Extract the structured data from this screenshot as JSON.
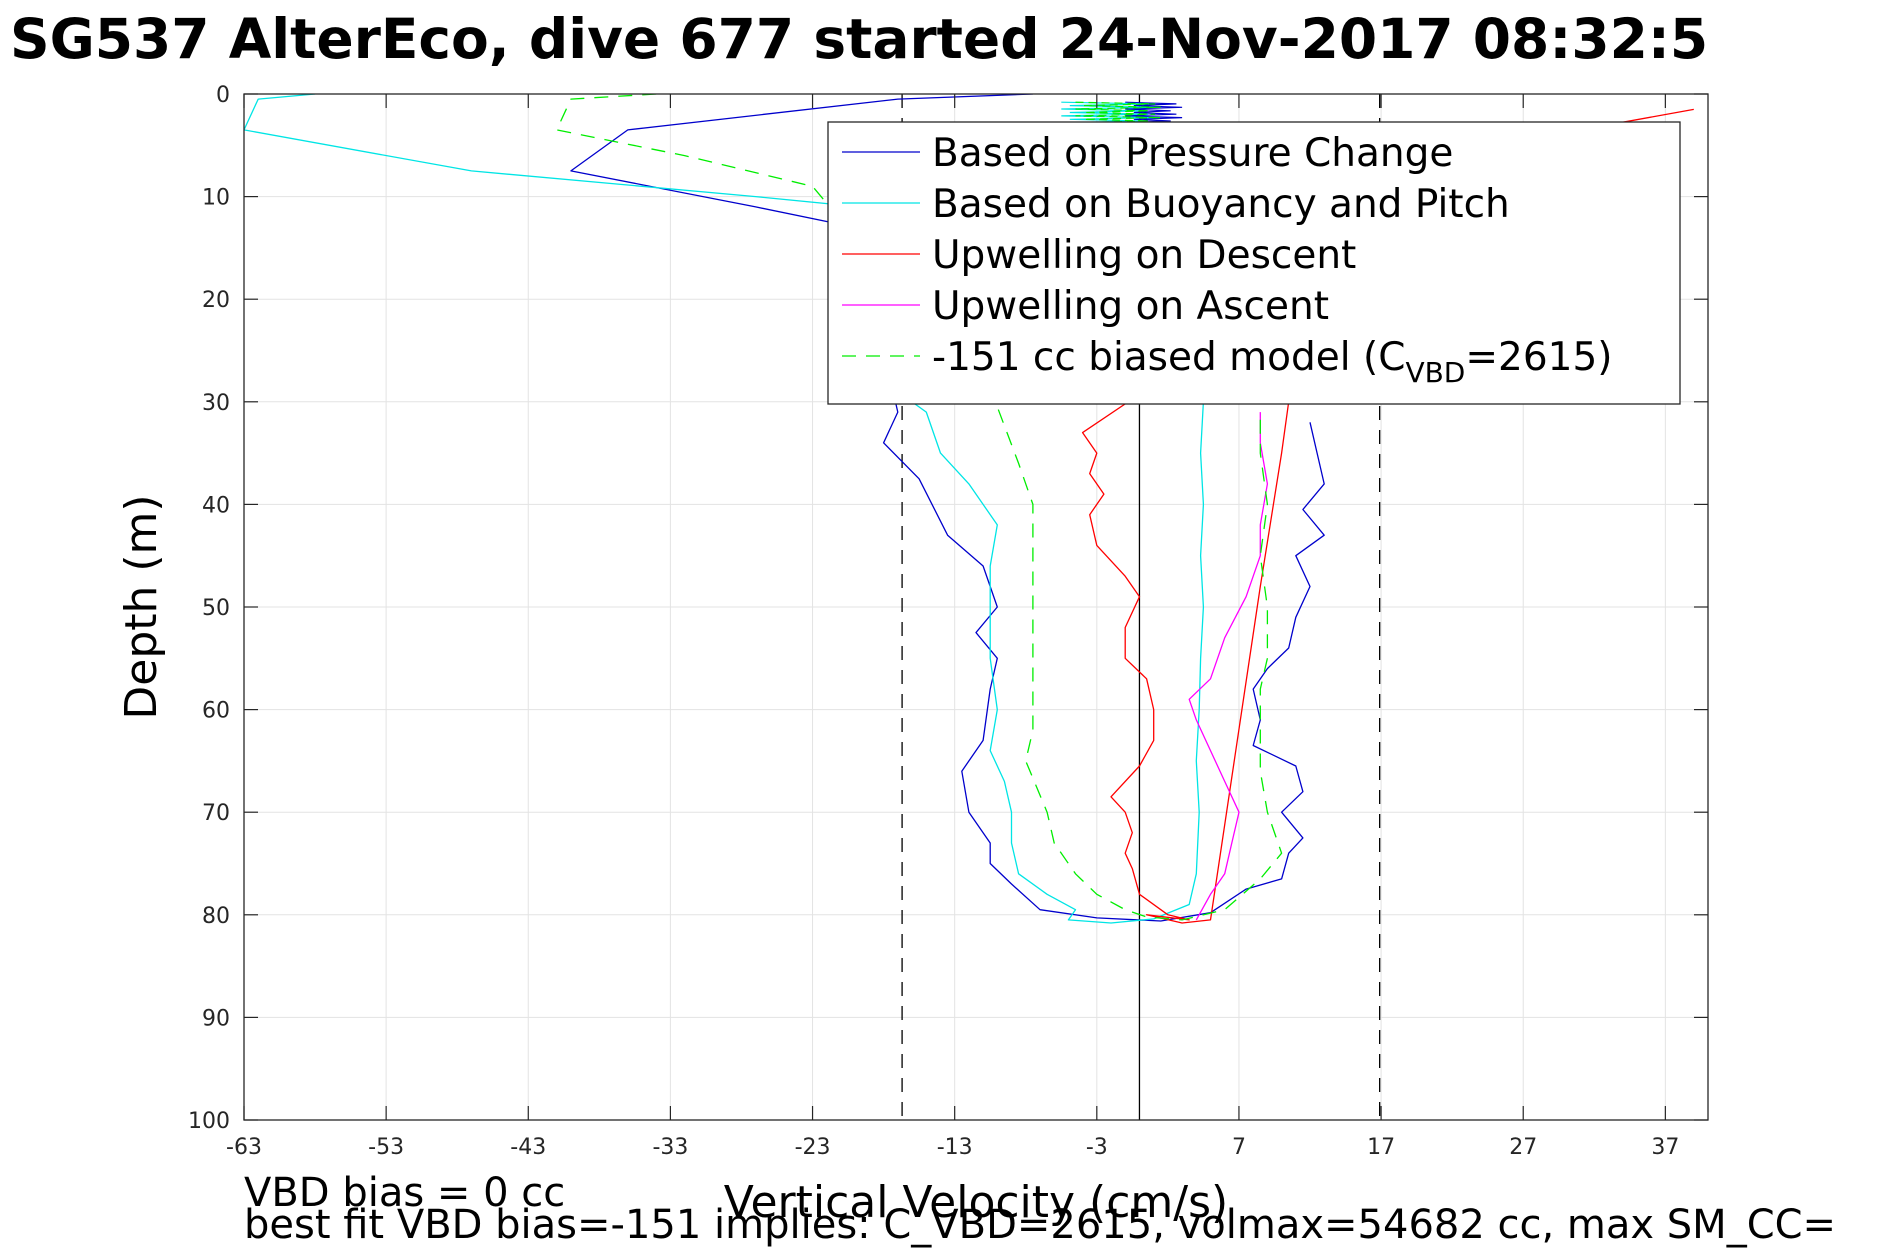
{
  "chart_data": {
    "type": "line",
    "title": "SG537 AlterEco, dive 677 started 24-Nov-2017 08:32:5",
    "xlabel": "Vertical Velocity (cm/s)",
    "ylabel": "Depth (m)",
    "xlim": [
      -63,
      40
    ],
    "ylim": [
      0,
      100
    ],
    "y_reversed": true,
    "grid": true,
    "legend_position": "top-right",
    "xticks": [
      -63,
      -53,
      -43,
      -33,
      -23,
      -13,
      -3,
      7,
      17,
      27,
      37
    ],
    "yticks": [
      0,
      10,
      20,
      30,
      40,
      50,
      60,
      70,
      80,
      90,
      100
    ],
    "xtick_labels": [
      "-63",
      "-53",
      "-43",
      "-33",
      "-23",
      "-13",
      "-3",
      "7",
      "17",
      "27",
      "37"
    ],
    "ytick_labels": [
      "0",
      "10",
      "20",
      "30",
      "40",
      "50",
      "60",
      "70",
      "80",
      "90",
      "100"
    ],
    "reference_lines": [
      {
        "x": 0,
        "style": "solid"
      },
      {
        "x": -16.7,
        "style": "dashed"
      },
      {
        "x": 16.9,
        "style": "dashed"
      }
    ],
    "legend": {
      "items": [
        {
          "label": "Based on Pressure Change",
          "color": "#0000cc",
          "dash": "solid"
        },
        {
          "label": "Based on Buoyancy and Pitch",
          "color": "#00e5e5",
          "dash": "solid"
        },
        {
          "label": "Upwelling on Descent",
          "color": "#ff0000",
          "dash": "solid"
        },
        {
          "label": "Upwelling on Ascent",
          "color": "#ff00ff",
          "dash": "solid"
        },
        {
          "label_prefix": "-151 cc biased model (C",
          "label_sub": "VBD",
          "label_suffix": "=2615)",
          "color": "#00ee00",
          "dash": "dashed"
        }
      ]
    },
    "series": [
      {
        "name": "Based on Pressure Change",
        "color": "#0000cc",
        "dash": "solid",
        "points": [
          [
            -7.5,
            0
          ],
          [
            -17,
            0.5
          ],
          [
            -36,
            3.5
          ],
          [
            -40,
            7.5
          ],
          [
            -27,
            11
          ],
          [
            -20,
            13
          ],
          [
            -17,
            31
          ],
          [
            -18,
            34
          ],
          [
            -15.5,
            37.5
          ],
          [
            -13.5,
            43
          ],
          [
            -11,
            46
          ],
          [
            -10,
            50
          ],
          [
            -11.5,
            52.5
          ],
          [
            -10,
            55
          ],
          [
            -10.5,
            58
          ],
          [
            -11,
            63
          ],
          [
            -12.5,
            66
          ],
          [
            -12,
            70
          ],
          [
            -10.5,
            73
          ],
          [
            -10.5,
            75
          ],
          [
            -9,
            77
          ],
          [
            -7,
            79.5
          ],
          [
            -3,
            80.3
          ],
          [
            1.5,
            80.6
          ],
          [
            5,
            79.8
          ],
          [
            7.5,
            77.5
          ],
          [
            10,
            76.5
          ],
          [
            10.5,
            74
          ],
          [
            11.5,
            72.5
          ],
          [
            10,
            70
          ],
          [
            11.5,
            68
          ],
          [
            11,
            65.5
          ],
          [
            8,
            63.5
          ],
          [
            8.5,
            61
          ],
          [
            8,
            58
          ],
          [
            9,
            56
          ],
          [
            10.5,
            54
          ],
          [
            11,
            51
          ],
          [
            12,
            48
          ],
          [
            11,
            45
          ],
          [
            13,
            43
          ],
          [
            11.5,
            40.5
          ],
          [
            13,
            38
          ],
          [
            12.5,
            35
          ],
          [
            12,
            32
          ]
        ]
      },
      {
        "name": "Based on Buoyancy and Pitch",
        "color": "#00e5e5",
        "dash": "solid",
        "points": [
          [
            -58,
            0
          ],
          [
            -62,
            0.5
          ],
          [
            -63,
            3.5
          ],
          [
            -47,
            7.5
          ],
          [
            -27,
            10
          ],
          [
            -16,
            11.5
          ],
          [
            -16,
            30
          ],
          [
            -15,
            31
          ],
          [
            -14,
            35
          ],
          [
            -12,
            38
          ],
          [
            -10,
            42
          ],
          [
            -10.5,
            46
          ],
          [
            -10.5,
            50
          ],
          [
            -10.5,
            55
          ],
          [
            -10,
            60
          ],
          [
            -10.5,
            64
          ],
          [
            -9.5,
            67
          ],
          [
            -9,
            70
          ],
          [
            -9,
            73
          ],
          [
            -8.5,
            76
          ],
          [
            -6.5,
            78
          ],
          [
            -4.5,
            79.5
          ],
          [
            -5,
            80.5
          ],
          [
            -2,
            80.8
          ],
          [
            1,
            80.4
          ],
          [
            3.5,
            79
          ],
          [
            4,
            76
          ],
          [
            4.2,
            70
          ],
          [
            4.0,
            65
          ],
          [
            4.2,
            60
          ],
          [
            4.3,
            55
          ],
          [
            4.5,
            50
          ],
          [
            4.3,
            45
          ],
          [
            4.5,
            40
          ],
          [
            4.3,
            35
          ],
          [
            4.5,
            30
          ]
        ]
      },
      {
        "name": "Upwelling on Descent",
        "color": "#ff0000",
        "dash": "solid",
        "points": [
          [
            39,
            1.5
          ],
          [
            33,
            3
          ],
          [
            26,
            5
          ],
          [
            -4,
            33
          ],
          [
            -3,
            35
          ],
          [
            -3.5,
            37
          ],
          [
            -2.5,
            39
          ],
          [
            -3.5,
            41
          ],
          [
            -3,
            44
          ],
          [
            -1,
            47
          ],
          [
            0,
            49
          ],
          [
            -1,
            52
          ],
          [
            -1,
            55
          ],
          [
            0.5,
            57
          ],
          [
            1,
            60
          ],
          [
            1,
            63
          ],
          [
            0,
            65.5
          ],
          [
            -2,
            68.5
          ],
          [
            -1,
            70
          ],
          [
            -0.5,
            72
          ],
          [
            -1,
            74
          ],
          [
            -0.5,
            75.5
          ],
          [
            0,
            78
          ],
          [
            2,
            80
          ],
          [
            3.5,
            80.5
          ],
          [
            0.5,
            80
          ],
          [
            3,
            80.8
          ],
          [
            5,
            80.5
          ],
          [
            8.5,
            48
          ],
          [
            10,
            35
          ],
          [
            10.5,
            30
          ]
        ]
      },
      {
        "name": "Upwelling on Ascent",
        "color": "#ff00ff",
        "dash": "solid",
        "points": [
          [
            4,
            80.5
          ],
          [
            5,
            78
          ],
          [
            6,
            76
          ],
          [
            6.5,
            73
          ],
          [
            7,
            70
          ],
          [
            6,
            67
          ],
          [
            5,
            64
          ],
          [
            4,
            61
          ],
          [
            3.5,
            59
          ],
          [
            5,
            57
          ],
          [
            6,
            53
          ],
          [
            7.5,
            49
          ],
          [
            8.5,
            45
          ],
          [
            8.5,
            42
          ],
          [
            9,
            38
          ],
          [
            8.5,
            34
          ],
          [
            8.5,
            31
          ]
        ]
      },
      {
        "name": "-151 cc biased model (CVBD=2615)",
        "color": "#00ee00",
        "dash": "dashed",
        "points": [
          [
            -34,
            0
          ],
          [
            -40,
            0.5
          ],
          [
            -41,
            3.5
          ],
          [
            -32,
            6
          ],
          [
            -23,
            9
          ],
          [
            -10,
            30.5
          ],
          [
            -8.5,
            36
          ],
          [
            -7.5,
            40
          ],
          [
            -7.5,
            45
          ],
          [
            -7.5,
            50
          ],
          [
            -7.5,
            56
          ],
          [
            -7.5,
            62
          ],
          [
            -8,
            65
          ],
          [
            -6.5,
            70
          ],
          [
            -6,
            73
          ],
          [
            -4.5,
            76
          ],
          [
            -3,
            78
          ],
          [
            -1,
            79.5
          ],
          [
            0.5,
            80.2
          ],
          [
            3,
            80.5
          ],
          [
            6,
            79.5
          ],
          [
            8.5,
            76.5
          ],
          [
            10,
            74
          ],
          [
            9,
            70
          ],
          [
            8.5,
            66
          ],
          [
            8.5,
            62
          ],
          [
            8.5,
            58
          ],
          [
            9,
            55
          ],
          [
            9,
            50
          ],
          [
            8.5,
            45
          ],
          [
            9,
            40
          ],
          [
            8.5,
            35
          ],
          [
            8.5,
            31
          ]
        ]
      }
    ],
    "surface_jitter": {
      "y": [
        0.8,
        2.8
      ]
    },
    "footnotes": [
      "VBD bias = 0 cc",
      "best fit VBD bias=-151 implies: C_VBD=2615, volmax=54682 cc, max SM_CC="
    ]
  }
}
